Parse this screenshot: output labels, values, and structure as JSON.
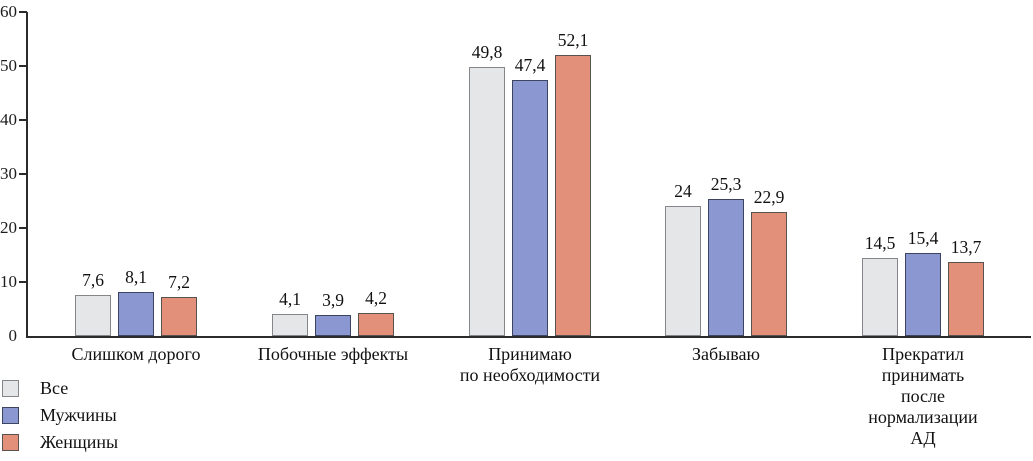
{
  "chart_data": {
    "type": "bar",
    "title": "",
    "xlabel": "",
    "ylabel": "",
    "categories": [
      "Слишком дорого",
      "Побочные эффекты",
      "Принимаю\nпо необходимости",
      "Забываю",
      "Прекратил принимать\nпосле нормализации АД"
    ],
    "series": [
      {
        "name": "Все",
        "values": [
          7.6,
          4.1,
          49.8,
          24,
          14.5
        ],
        "labels": [
          "7,6",
          "4,1",
          "49,8",
          "24",
          "14,5"
        ],
        "fill": "#e5e6e8",
        "border": "#85868a"
      },
      {
        "name": "Мужчины",
        "values": [
          8.1,
          3.9,
          47.4,
          25.3,
          15.4
        ],
        "labels": [
          "8,1",
          "3,9",
          "47,4",
          "25,3",
          "15,4"
        ],
        "fill": "#8a97d0",
        "border": "#3d4460"
      },
      {
        "name": "Женщины",
        "values": [
          7.2,
          4.2,
          52.1,
          22.9,
          13.7
        ],
        "labels": [
          "7,2",
          "4,2",
          "52,1",
          "22,9",
          "13,7"
        ],
        "fill": "#e29079",
        "border": "#59524e"
      }
    ],
    "ylim": [
      0,
      60
    ],
    "yticks": [
      0,
      10,
      20,
      30,
      40,
      50,
      60
    ],
    "decimal_separator": ",",
    "grid": false,
    "legend_position": "bottom-left",
    "axis_color": "#2b2b2b"
  }
}
